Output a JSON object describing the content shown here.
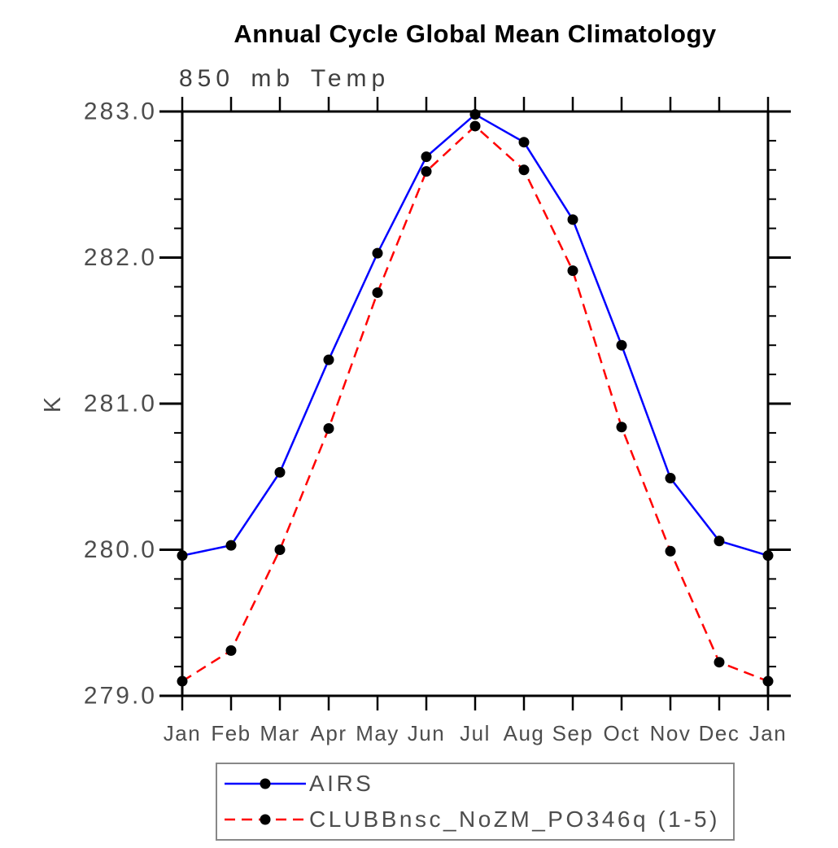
{
  "chart_data": {
    "type": "line",
    "title": "Annual Cycle Global Mean Climatology",
    "subtitle": "850 mb Temp",
    "ylabel": "K",
    "xlabel": "",
    "categories": [
      "Jan",
      "Feb",
      "Mar",
      "Apr",
      "May",
      "Jun",
      "Jul",
      "Aug",
      "Sep",
      "Oct",
      "Nov",
      "Dec",
      "Jan"
    ],
    "ylim": [
      279.0,
      283.0
    ],
    "y_major_ticks": [
      279.0,
      280.0,
      281.0,
      282.0,
      283.0
    ],
    "y_tick_labels": [
      "279.0",
      "280.0",
      "281.0",
      "282.0",
      "283.0"
    ],
    "y_minor_step": 0.2,
    "grid": false,
    "legend_position": "bottom",
    "axis_color": "#000000",
    "text_color": "#4d4d4d",
    "legend_border_color": "#888888",
    "marker_color": "#000000",
    "series": [
      {
        "name": "AIRS",
        "color": "#0000ff",
        "style": "solid",
        "marker": "circle",
        "values": [
          279.96,
          280.03,
          280.53,
          281.3,
          282.03,
          282.69,
          282.98,
          282.79,
          282.26,
          281.4,
          280.49,
          280.06,
          279.96
        ]
      },
      {
        "name": "CLUBBnsc_NoZM_PO346q (1-5)",
        "color": "#ff0000",
        "style": "dashed",
        "marker": "circle",
        "values": [
          279.1,
          279.31,
          280.0,
          280.83,
          281.76,
          282.59,
          282.9,
          282.6,
          281.91,
          280.84,
          279.99,
          279.23,
          279.1
        ]
      }
    ]
  }
}
